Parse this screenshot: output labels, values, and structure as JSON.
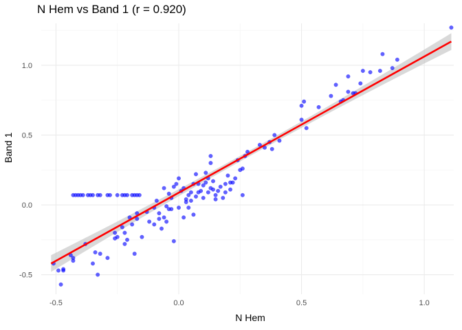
{
  "colors": {
    "points": "#0000ff",
    "fit_line": "#ff0000",
    "ribbon": "#bfbfbf",
    "grid_major": "#ebebeb",
    "grid_minor": "#f5f5f5"
  },
  "chart_data": {
    "type": "scatter",
    "title": "N Hem vs Band 1 (r = 0.920)",
    "xlabel": "N Hem",
    "ylabel": "Band 1",
    "xlim": [
      -0.56,
      1.12
    ],
    "ylim": [
      -0.64,
      1.3
    ],
    "x_ticks": [
      -0.5,
      0.0,
      0.5,
      1.0
    ],
    "x_tick_labels": [
      "-0.5",
      "0.0",
      "0.5",
      "1.0"
    ],
    "y_ticks": [
      -0.5,
      0.0,
      0.5,
      1.0
    ],
    "y_tick_labels": [
      "-0.5",
      "0.0",
      "0.5",
      "1.0"
    ],
    "grid": true,
    "legend": "none",
    "fit": {
      "x": [
        -0.52,
        1.11
      ],
      "y": [
        -0.42,
        1.17
      ],
      "ci_halfwidth_ends": 0.06,
      "ci_halfwidth_center": 0.02
    },
    "points": [
      {
        "x": -0.51,
        "y": -0.42
      },
      {
        "x": -0.49,
        "y": -0.47
      },
      {
        "x": -0.48,
        "y": -0.57
      },
      {
        "x": -0.47,
        "y": -0.46
      },
      {
        "x": -0.47,
        "y": -0.47
      },
      {
        "x": -0.44,
        "y": -0.36
      },
      {
        "x": -0.43,
        "y": -0.38
      },
      {
        "x": -0.43,
        "y": -0.4
      },
      {
        "x": -0.38,
        "y": -0.28
      },
      {
        "x": -0.35,
        "y": -0.42
      },
      {
        "x": -0.34,
        "y": -0.34
      },
      {
        "x": -0.33,
        "y": -0.5
      },
      {
        "x": -0.32,
        "y": -0.35
      },
      {
        "x": -0.29,
        "y": -0.38
      },
      {
        "x": -0.26,
        "y": -0.2
      },
      {
        "x": -0.26,
        "y": -0.24
      },
      {
        "x": -0.25,
        "y": -0.23
      },
      {
        "x": -0.23,
        "y": -0.16
      },
      {
        "x": -0.22,
        "y": -0.2
      },
      {
        "x": -0.22,
        "y": -0.28
      },
      {
        "x": -0.21,
        "y": -0.25
      },
      {
        "x": -0.2,
        "y": -0.09
      },
      {
        "x": -0.19,
        "y": -0.14
      },
      {
        "x": -0.18,
        "y": -0.35
      },
      {
        "x": -0.17,
        "y": -0.06
      },
      {
        "x": -0.17,
        "y": -0.1
      },
      {
        "x": -0.15,
        "y": -0.23
      },
      {
        "x": -0.13,
        "y": -0.05
      },
      {
        "x": -0.12,
        "y": -0.12
      },
      {
        "x": -0.1,
        "y": -0.02
      },
      {
        "x": -0.1,
        "y": -0.14
      },
      {
        "x": -0.09,
        "y": 0.03
      },
      {
        "x": -0.08,
        "y": -0.06
      },
      {
        "x": -0.08,
        "y": -0.1
      },
      {
        "x": -0.07,
        "y": -0.17
      },
      {
        "x": -0.06,
        "y": -0.09
      },
      {
        "x": -0.05,
        "y": -0.01
      },
      {
        "x": -0.05,
        "y": -0.12
      },
      {
        "x": -0.04,
        "y": -0.03
      },
      {
        "x": -0.03,
        "y": -0.03
      },
      {
        "x": -0.06,
        "y": 0.12
      },
      {
        "x": -0.04,
        "y": 0.08
      },
      {
        "x": -0.03,
        "y": 0.05
      },
      {
        "x": -0.02,
        "y": 0.13
      },
      {
        "x": -0.02,
        "y": -0.26
      },
      {
        "x": -0.01,
        "y": 0.15
      },
      {
        "x": 0.0,
        "y": -0.02
      },
      {
        "x": 0.0,
        "y": 0.19
      },
      {
        "x": 0.01,
        "y": 0.1
      },
      {
        "x": 0.02,
        "y": 0.12
      },
      {
        "x": 0.02,
        "y": -0.09
      },
      {
        "x": 0.03,
        "y": 0.02
      },
      {
        "x": 0.03,
        "y": 0.04
      },
      {
        "x": 0.04,
        "y": 0.07
      },
      {
        "x": 0.04,
        "y": -0.02
      },
      {
        "x": 0.05,
        "y": 0.09
      },
      {
        "x": 0.05,
        "y": 0.03
      },
      {
        "x": 0.06,
        "y": 0.15
      },
      {
        "x": 0.06,
        "y": -0.07
      },
      {
        "x": 0.07,
        "y": 0.22
      },
      {
        "x": 0.07,
        "y": 0.06
      },
      {
        "x": 0.08,
        "y": 0.09
      },
      {
        "x": 0.08,
        "y": 0.15
      },
      {
        "x": 0.09,
        "y": 0.1
      },
      {
        "x": 0.1,
        "y": 0.14
      },
      {
        "x": 0.1,
        "y": 0.05
      },
      {
        "x": 0.11,
        "y": 0.16
      },
      {
        "x": 0.11,
        "y": 0.23
      },
      {
        "x": 0.12,
        "y": 0.09
      },
      {
        "x": 0.12,
        "y": 0.19
      },
      {
        "x": 0.13,
        "y": 0.12
      },
      {
        "x": 0.13,
        "y": 0.3
      },
      {
        "x": 0.13,
        "y": 0.35
      },
      {
        "x": 0.14,
        "y": 0.11
      },
      {
        "x": 0.14,
        "y": 0.17
      },
      {
        "x": 0.15,
        "y": 0.07
      },
      {
        "x": 0.15,
        "y": 0.04
      },
      {
        "x": 0.16,
        "y": 0.1
      },
      {
        "x": 0.17,
        "y": 0.13
      },
      {
        "x": 0.18,
        "y": 0.05
      },
      {
        "x": 0.19,
        "y": 0.15
      },
      {
        "x": 0.19,
        "y": 0.09
      },
      {
        "x": 0.2,
        "y": 0.21
      },
      {
        "x": 0.21,
        "y": 0.16
      },
      {
        "x": 0.21,
        "y": 0.11
      },
      {
        "x": 0.22,
        "y": 0.16
      },
      {
        "x": 0.23,
        "y": 0.19
      },
      {
        "x": 0.24,
        "y": 0.32
      },
      {
        "x": 0.25,
        "y": 0.25
      },
      {
        "x": 0.26,
        "y": 0.26
      },
      {
        "x": 0.27,
        "y": 0.35
      },
      {
        "x": 0.28,
        "y": 0.38
      },
      {
        "x": 0.26,
        "y": 0.07
      },
      {
        "x": 0.33,
        "y": 0.43
      },
      {
        "x": 0.35,
        "y": 0.41
      },
      {
        "x": 0.37,
        "y": 0.45
      },
      {
        "x": 0.38,
        "y": 0.4
      },
      {
        "x": 0.39,
        "y": 0.5
      },
      {
        "x": 0.41,
        "y": 0.46
      },
      {
        "x": 0.5,
        "y": 0.61
      },
      {
        "x": 0.5,
        "y": 0.71
      },
      {
        "x": 0.51,
        "y": 0.74
      },
      {
        "x": 0.52,
        "y": 0.55
      },
      {
        "x": 0.57,
        "y": 0.7
      },
      {
        "x": 0.62,
        "y": 0.78
      },
      {
        "x": 0.64,
        "y": 0.86
      },
      {
        "x": 0.66,
        "y": 0.74
      },
      {
        "x": 0.67,
        "y": 0.75
      },
      {
        "x": 0.69,
        "y": 0.81
      },
      {
        "x": 0.69,
        "y": 0.92
      },
      {
        "x": 0.71,
        "y": 0.8
      },
      {
        "x": 0.72,
        "y": 0.8
      },
      {
        "x": 0.74,
        "y": 0.87
      },
      {
        "x": 0.75,
        "y": 0.96
      },
      {
        "x": 0.78,
        "y": 0.95
      },
      {
        "x": 0.82,
        "y": 0.96
      },
      {
        "x": 0.83,
        "y": 1.08
      },
      {
        "x": 0.87,
        "y": 0.98
      },
      {
        "x": 0.89,
        "y": 1.04
      },
      {
        "x": 1.11,
        "y": 1.27
      },
      {
        "x": -0.43,
        "y": 0.07
      },
      {
        "x": -0.42,
        "y": 0.07
      },
      {
        "x": -0.41,
        "y": 0.07
      },
      {
        "x": -0.4,
        "y": 0.07
      },
      {
        "x": -0.39,
        "y": 0.07
      },
      {
        "x": -0.37,
        "y": 0.07
      },
      {
        "x": -0.36,
        "y": 0.07
      },
      {
        "x": -0.35,
        "y": 0.07
      },
      {
        "x": -0.33,
        "y": 0.07
      },
      {
        "x": -0.32,
        "y": 0.07
      },
      {
        "x": -0.29,
        "y": 0.07
      },
      {
        "x": -0.28,
        "y": 0.07
      },
      {
        "x": -0.25,
        "y": 0.07
      },
      {
        "x": -0.23,
        "y": 0.07
      },
      {
        "x": -0.22,
        "y": 0.07
      },
      {
        "x": -0.21,
        "y": 0.07
      },
      {
        "x": -0.19,
        "y": 0.07
      },
      {
        "x": -0.18,
        "y": 0.07
      },
      {
        "x": -0.17,
        "y": 0.07
      },
      {
        "x": -0.16,
        "y": 0.07
      }
    ]
  }
}
